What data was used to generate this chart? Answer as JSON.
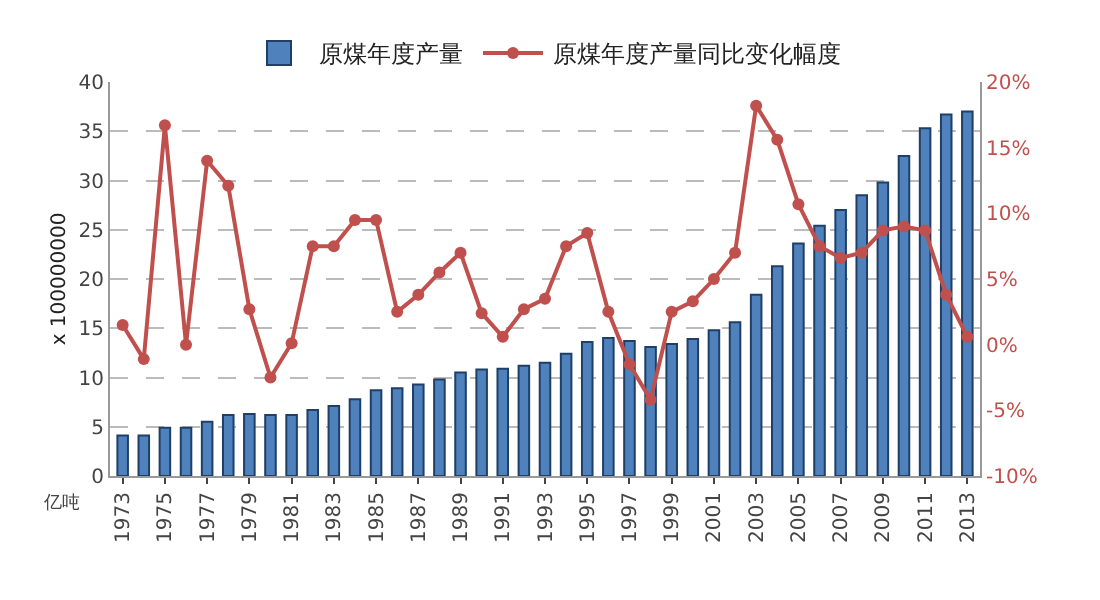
{
  "chart_data": {
    "type": "bar",
    "ylabel": "x 100000000",
    "annotations": [
      "亿吨"
    ],
    "categories": [
      "1973",
      null,
      "1975",
      null,
      "1977",
      null,
      "1979",
      null,
      "1981",
      null,
      "1983",
      null,
      "1985",
      null,
      "1987",
      null,
      "1989",
      null,
      "1991",
      null,
      "1993",
      null,
      "1995",
      null,
      "1997",
      null,
      "1999",
      null,
      "2001",
      null,
      "2003",
      null,
      "2005",
      null,
      "2007",
      null,
      "2009",
      null,
      "2011",
      null,
      "2013"
    ],
    "series": [
      {
        "name": "原煤年度产量",
        "color": "#4f81bd",
        "values": [
          4.1,
          4.1,
          4.9,
          4.9,
          5.5,
          6.2,
          6.3,
          6.2,
          6.2,
          6.7,
          7.1,
          7.8,
          8.7,
          8.9,
          9.3,
          9.8,
          10.5,
          10.8,
          10.9,
          11.2,
          11.5,
          12.4,
          13.6,
          14.0,
          13.7,
          13.1,
          13.4,
          13.9,
          14.8,
          15.6,
          18.4,
          21.3,
          23.6,
          25.4,
          27.0,
          28.5,
          29.8,
          32.5,
          35.3,
          36.7,
          37.0
        ]
      },
      {
        "name": "原煤年度产量同比变化幅度",
        "type": "line",
        "axis": "y2",
        "color": "#c0504d",
        "marker": "circle",
        "line_style": "solid",
        "values": [
          1.5,
          -1.1,
          16.7,
          0,
          14,
          12.1,
          2.7,
          -2.5,
          0.1,
          7.5,
          7.5,
          9.5,
          9.5,
          2.5,
          3.8,
          5.5,
          7,
          2.4,
          0.6,
          2.7,
          3.5,
          7.5,
          8.5,
          2.5,
          -1.5,
          -4.2,
          2.5,
          3.3,
          5,
          7,
          18.2,
          15.6,
          10.7,
          7.5,
          6.6,
          7,
          8.7,
          9,
          8.7,
          3.8,
          0.6
        ]
      }
    ],
    "ylim": [
      0,
      40
    ],
    "yticks": [
      0,
      5,
      10,
      15,
      20,
      25,
      30,
      35,
      40
    ],
    "y2lim": [
      -10,
      20
    ],
    "y2ticks": [
      {
        "value": -10,
        "label": "-10%"
      },
      {
        "value": -5,
        "label": "-5%"
      },
      {
        "value": 0,
        "label": "0%"
      },
      {
        "value": 5,
        "label": "5%"
      },
      {
        "value": 10,
        "label": "10%"
      },
      {
        "value": 15,
        "label": "15%"
      },
      {
        "value": 20,
        "label": "20%"
      }
    ],
    "grid": "y",
    "legend": "top"
  }
}
